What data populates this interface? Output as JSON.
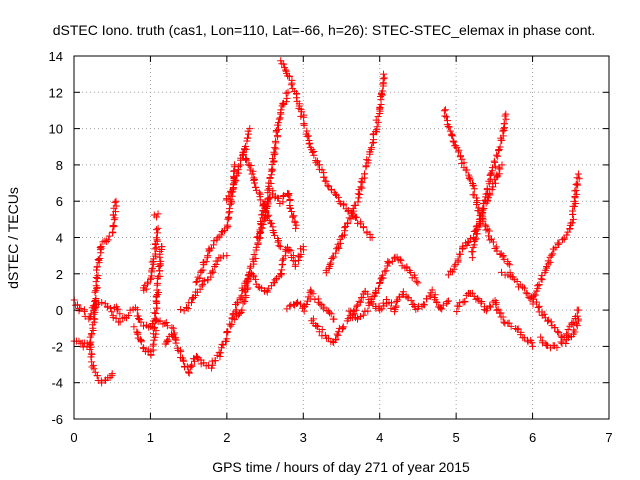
{
  "chart_data": {
    "type": "scatter",
    "title": "dSTEC Iono. truth (cas1, Lon=110, Lat=-66, h=26): STEC-STEC_elemax in phase cont.",
    "xlabel": "GPS time / hours of day 271 of year 2015",
    "ylabel": "dSTEC  / TECUs",
    "xlim": [
      0,
      7
    ],
    "ylim": [
      -6,
      14
    ],
    "xticks": [
      "0",
      "1",
      "2",
      "3",
      "4",
      "5",
      "6",
      "7"
    ],
    "yticks": [
      "-6",
      "-4",
      "-2",
      "0",
      "2",
      "4",
      "6",
      "8",
      "10",
      "12",
      "14"
    ],
    "grid": true,
    "marker": "+",
    "marker_color": "#ff0000",
    "series": [
      {
        "arcs": [
          {
            "x": [
              0.0,
              0.1,
              0.2,
              0.3,
              0.4,
              0.5,
              0.55,
              0.6
            ],
            "y": [
              0.5,
              0.0,
              -0.5,
              0.5,
              0.3,
              0.0,
              0.2,
              -0.2
            ]
          },
          {
            "x": [
              0.0,
              0.1,
              0.2,
              0.25,
              0.3,
              0.35,
              0.4,
              0.45,
              0.5,
              0.55
            ],
            "y": [
              -1.7,
              -1.9,
              -2.0,
              -1.0,
              2.0,
              3.5,
              3.8,
              4.0,
              4.2,
              6.0
            ]
          },
          {
            "x": [
              0.1,
              0.2,
              0.25,
              0.3,
              0.35,
              0.4,
              0.45,
              0.5
            ],
            "y": [
              -1.8,
              -2.0,
              -3.0,
              -3.7,
              -3.9,
              -4.0,
              -3.8,
              -3.5
            ]
          },
          {
            "x": [
              0.5,
              0.6,
              0.7,
              0.8,
              0.9,
              1.0,
              1.1,
              1.2,
              1.3
            ],
            "y": [
              -0.3,
              -0.6,
              -0.2,
              0.0,
              -0.8,
              -1.0,
              -0.5,
              -0.8,
              -1.0
            ]
          },
          {
            "x": [
              0.8,
              0.9,
              1.0,
              1.05,
              1.1,
              1.15
            ],
            "y": [
              -1.0,
              -2.0,
              -2.5,
              -1.5,
              1.5,
              3.5
            ]
          },
          {
            "x": [
              0.9,
              1.0,
              1.05,
              1.1
            ],
            "y": [
              1.0,
              1.8,
              3.0,
              4.5
            ]
          },
          {
            "x": [
              1.05,
              1.1
            ],
            "y": [
              5.2,
              5.3
            ]
          },
          {
            "x": [
              1.2,
              1.3,
              1.4,
              1.5,
              1.6,
              1.7,
              1.8
            ],
            "y": [
              -2.0,
              -1.2,
              -2.5,
              -3.5,
              -2.5,
              -3.0,
              -3.2
            ]
          },
          {
            "x": [
              1.4,
              1.5,
              1.6,
              1.7,
              1.8,
              1.9,
              2.0
            ],
            "y": [
              0.0,
              0.2,
              1.0,
              1.5,
              2.0,
              2.8,
              3.0
            ]
          },
          {
            "x": [
              1.6,
              1.7,
              1.8,
              1.9,
              2.0,
              2.05,
              2.1
            ],
            "y": [
              1.5,
              2.5,
              3.5,
              4.0,
              4.5,
              6.0,
              8.0
            ]
          },
          {
            "x": [
              1.8,
              1.9,
              2.0,
              2.1,
              2.2,
              2.3,
              2.4,
              2.5,
              2.6,
              2.7
            ],
            "y": [
              -3.0,
              -2.5,
              -1.5,
              0.0,
              1.0,
              2.0,
              1.5,
              1.0,
              1.5,
              2.0
            ]
          },
          {
            "x": [
              2.0,
              2.1,
              2.2,
              2.25,
              2.3
            ],
            "y": [
              6.0,
              7.0,
              8.5,
              9.0,
              10.0
            ]
          },
          {
            "x": [
              2.2,
              2.3,
              2.4,
              2.5,
              2.6,
              2.7
            ],
            "y": [
              8.8,
              8.0,
              6.5,
              5.5,
              4.5,
              3.5
            ]
          },
          {
            "x": [
              2.1,
              2.2,
              2.3,
              2.4,
              2.5
            ],
            "y": [
              -0.5,
              0.0,
              2.0,
              3.5,
              6.0
            ]
          },
          {
            "x": [
              2.4,
              2.5,
              2.55,
              2.6,
              2.65,
              2.7,
              2.8
            ],
            "y": [
              4.0,
              5.0,
              6.5,
              8.0,
              9.5,
              11.0,
              12.0
            ]
          },
          {
            "x": [
              2.5,
              2.6,
              2.7,
              2.8,
              2.9
            ],
            "y": [
              5.5,
              6.5,
              6.0,
              6.5,
              4.5
            ]
          },
          {
            "x": [
              2.7,
              2.75,
              2.8,
              2.85,
              2.9,
              3.0
            ],
            "y": [
              2.0,
              3.0,
              3.5,
              3.0,
              2.5,
              3.5
            ]
          },
          {
            "x": [
              2.7,
              2.8,
              2.9,
              3.0,
              3.1,
              3.2,
              3.3,
              3.4,
              3.5,
              3.6,
              3.7,
              3.8,
              3.9
            ],
            "y": [
              13.8,
              13.0,
              12.0,
              10.5,
              9.0,
              8.0,
              7.0,
              6.5,
              6.0,
              5.5,
              5.0,
              4.5,
              4.0
            ]
          },
          {
            "x": [
              2.8,
              2.9,
              3.0,
              3.1,
              3.2,
              3.3,
              3.4
            ],
            "y": [
              0.0,
              0.5,
              0.0,
              1.0,
              0.5,
              0.0,
              -0.5
            ]
          },
          {
            "x": [
              3.1,
              3.2,
              3.3,
              3.4,
              3.5,
              3.6,
              3.7,
              3.8,
              3.9,
              4.0
            ],
            "y": [
              -0.5,
              -1.0,
              -1.5,
              -1.8,
              -1.0,
              -0.5,
              0.0,
              1.0,
              0.5,
              0.0
            ]
          },
          {
            "x": [
              3.3,
              3.4,
              3.5,
              3.6,
              3.7,
              3.8,
              3.9,
              4.0,
              4.05
            ],
            "y": [
              2.0,
              3.0,
              4.0,
              5.0,
              6.0,
              7.5,
              9.0,
              11.0,
              13.0
            ]
          },
          {
            "x": [
              3.6,
              3.7,
              3.8,
              3.9,
              4.0,
              4.1,
              4.2,
              4.3,
              4.4,
              4.5
            ],
            "y": [
              0.0,
              -0.5,
              -0.2,
              0.5,
              1.5,
              2.5,
              3.0,
              2.5,
              2.0,
              1.5
            ]
          },
          {
            "x": [
              4.0,
              4.1,
              4.2,
              4.3,
              4.4,
              4.5,
              4.6,
              4.7,
              4.8,
              4.9
            ],
            "y": [
              0.0,
              0.5,
              0.0,
              1.0,
              0.5,
              0.0,
              0.5,
              1.0,
              0.0,
              0.5
            ]
          },
          {
            "x": [
              4.85,
              4.9,
              5.0,
              5.1,
              5.2,
              5.3,
              5.4,
              5.5,
              5.6,
              5.7
            ],
            "y": [
              11.0,
              10.0,
              9.0,
              8.0,
              7.0,
              5.5,
              4.5,
              3.5,
              3.0,
              2.5
            ]
          },
          {
            "x": [
              4.9,
              5.0,
              5.1,
              5.2,
              5.3,
              5.4,
              5.5,
              5.6
            ],
            "y": [
              2.0,
              2.5,
              3.5,
              4.0,
              5.0,
              6.0,
              7.0,
              8.0
            ]
          },
          {
            "x": [
              5.2,
              5.3,
              5.4,
              5.5,
              5.6,
              5.65
            ],
            "y": [
              3.0,
              4.5,
              6.5,
              8.0,
              9.5,
              10.8
            ]
          },
          {
            "x": [
              5.0,
              5.1,
              5.2,
              5.3,
              5.4,
              5.5,
              5.6,
              5.7,
              5.8,
              5.9,
              6.0
            ],
            "y": [
              0.0,
              0.5,
              1.0,
              0.5,
              0.0,
              0.5,
              -0.5,
              -0.8,
              -1.0,
              -1.5,
              -2.0
            ]
          },
          {
            "x": [
              5.6,
              5.7,
              5.8,
              5.9,
              6.0,
              6.1,
              6.2,
              6.3,
              6.4,
              6.5,
              6.6
            ],
            "y": [
              2.0,
              2.0,
              1.5,
              1.0,
              0.5,
              0.0,
              -0.5,
              -1.0,
              -1.5,
              -1.0,
              0.0
            ]
          },
          {
            "x": [
              6.0,
              6.1,
              6.2,
              6.3,
              6.4,
              6.5,
              6.55,
              6.6
            ],
            "y": [
              0.5,
              1.5,
              2.5,
              3.5,
              4.0,
              4.5,
              6.0,
              7.5
            ]
          },
          {
            "x": [
              6.1,
              6.2,
              6.3,
              6.4,
              6.5,
              6.6
            ],
            "y": [
              -1.5,
              -2.0,
              -2.0,
              -1.8,
              -1.5,
              -0.5
            ]
          }
        ]
      }
    ]
  }
}
